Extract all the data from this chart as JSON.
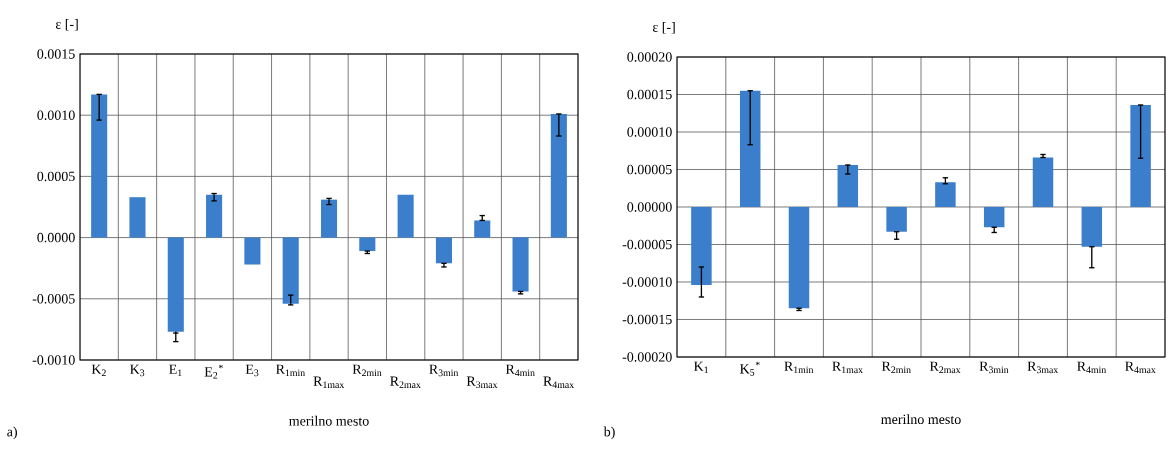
{
  "chart_data": [
    {
      "type": "bar",
      "ylabel": "ε [-]",
      "xlabel": "merilno mesto",
      "annotations": [
        "a)"
      ],
      "grid": true,
      "color": "#3b7fcc",
      "categories": [
        "K$_{2}$",
        "K$_{3}$",
        "E$_{1}$",
        "E$_{2}$$^{*}$",
        "E$_{3}$",
        "R$_{1min}$",
        "R$_{1max}$",
        "R$_{2min}$",
        "R$_{2max}$",
        "R$_{3min}$",
        "R$_{3max}$",
        "R$_{4min}$",
        "R$_{4max}$"
      ],
      "values": [
        0.00117,
        0.00033,
        -0.00077,
        0.00035,
        -0.00022,
        -0.00054,
        0.00031,
        -0.00011,
        0.00035,
        -0.00021,
        0.00014,
        -0.00044,
        0.00101
      ],
      "errors": [
        [
          0.00096,
          0.00117
        ],
        null,
        [
          -0.00085,
          -0.00078
        ],
        [
          0.0003,
          0.00036
        ],
        null,
        [
          -0.00055,
          -0.00047
        ],
        [
          0.00027,
          0.00032
        ],
        [
          -0.00013,
          -0.00011
        ],
        null,
        [
          -0.00024,
          -0.00021
        ],
        [
          0.00014,
          0.00018
        ],
        [
          -0.00046,
          -0.00044
        ],
        [
          0.00083,
          0.00101
        ]
      ],
      "ylim": [
        -0.001,
        0.0015
      ],
      "yticks": [
        {
          "value": -0.001,
          "label": "-0.0010"
        },
        {
          "value": -0.0005,
          "label": "-0.0005"
        },
        {
          "value": 0,
          "label": "0.0000"
        },
        {
          "value": 0.0005,
          "label": "0.0005"
        },
        {
          "value": 0.001,
          "label": "0.0010"
        },
        {
          "value": 0.0015,
          "label": "0.0015"
        }
      ]
    },
    {
      "type": "bar",
      "ylabel": "ε [-]",
      "xlabel": "merilno mesto",
      "annotations": [
        "b)"
      ],
      "grid": true,
      "color": "#3b7fcc",
      "categories": [
        "K$_{1}$",
        "K$_{5}$$^{*}$",
        "R$_{1min}$",
        "R$_{1max}$",
        "R$_{2min}$",
        "R$_{2max}$",
        "R$_{3min}$",
        "R$_{3max}$",
        "R$_{4min}$",
        "R$_{4max}$"
      ],
      "values": [
        -0.000104,
        0.000155,
        -0.000135,
        5.6e-05,
        -3.3e-05,
        3.3e-05,
        -2.7e-05,
        6.6e-05,
        -5.3e-05,
        0.000136
      ],
      "errors": [
        [
          -0.00012,
          -8e-05
        ],
        [
          8.3e-05,
          0.000155
        ],
        [
          -0.000138,
          -0.000135
        ],
        [
          4.4e-05,
          5.6e-05
        ],
        [
          -4.3e-05,
          -3.3e-05
        ],
        [
          3.1e-05,
          3.9e-05
        ],
        [
          -3.4e-05,
          -2.7e-05
        ],
        [
          6.6e-05,
          7e-05
        ],
        [
          -8.1e-05,
          -5.3e-05
        ],
        [
          6.5e-05,
          0.000136
        ]
      ],
      "ylim": [
        -0.0002,
        0.0002
      ],
      "yticks": [
        {
          "value": -0.0002,
          "label": "-0.00020"
        },
        {
          "value": -0.00015,
          "label": "-0.00015"
        },
        {
          "value": -0.0001,
          "label": "-0.00010"
        },
        {
          "value": -5e-05,
          "label": "-0.00005"
        },
        {
          "value": 0,
          "label": "0.00000"
        },
        {
          "value": 5e-05,
          "label": "0.00005"
        },
        {
          "value": 0.0001,
          "label": "0.00010"
        },
        {
          "value": 0.00015,
          "label": "0.00015"
        },
        {
          "value": 0.0002,
          "label": "0.00020"
        }
      ]
    }
  ]
}
